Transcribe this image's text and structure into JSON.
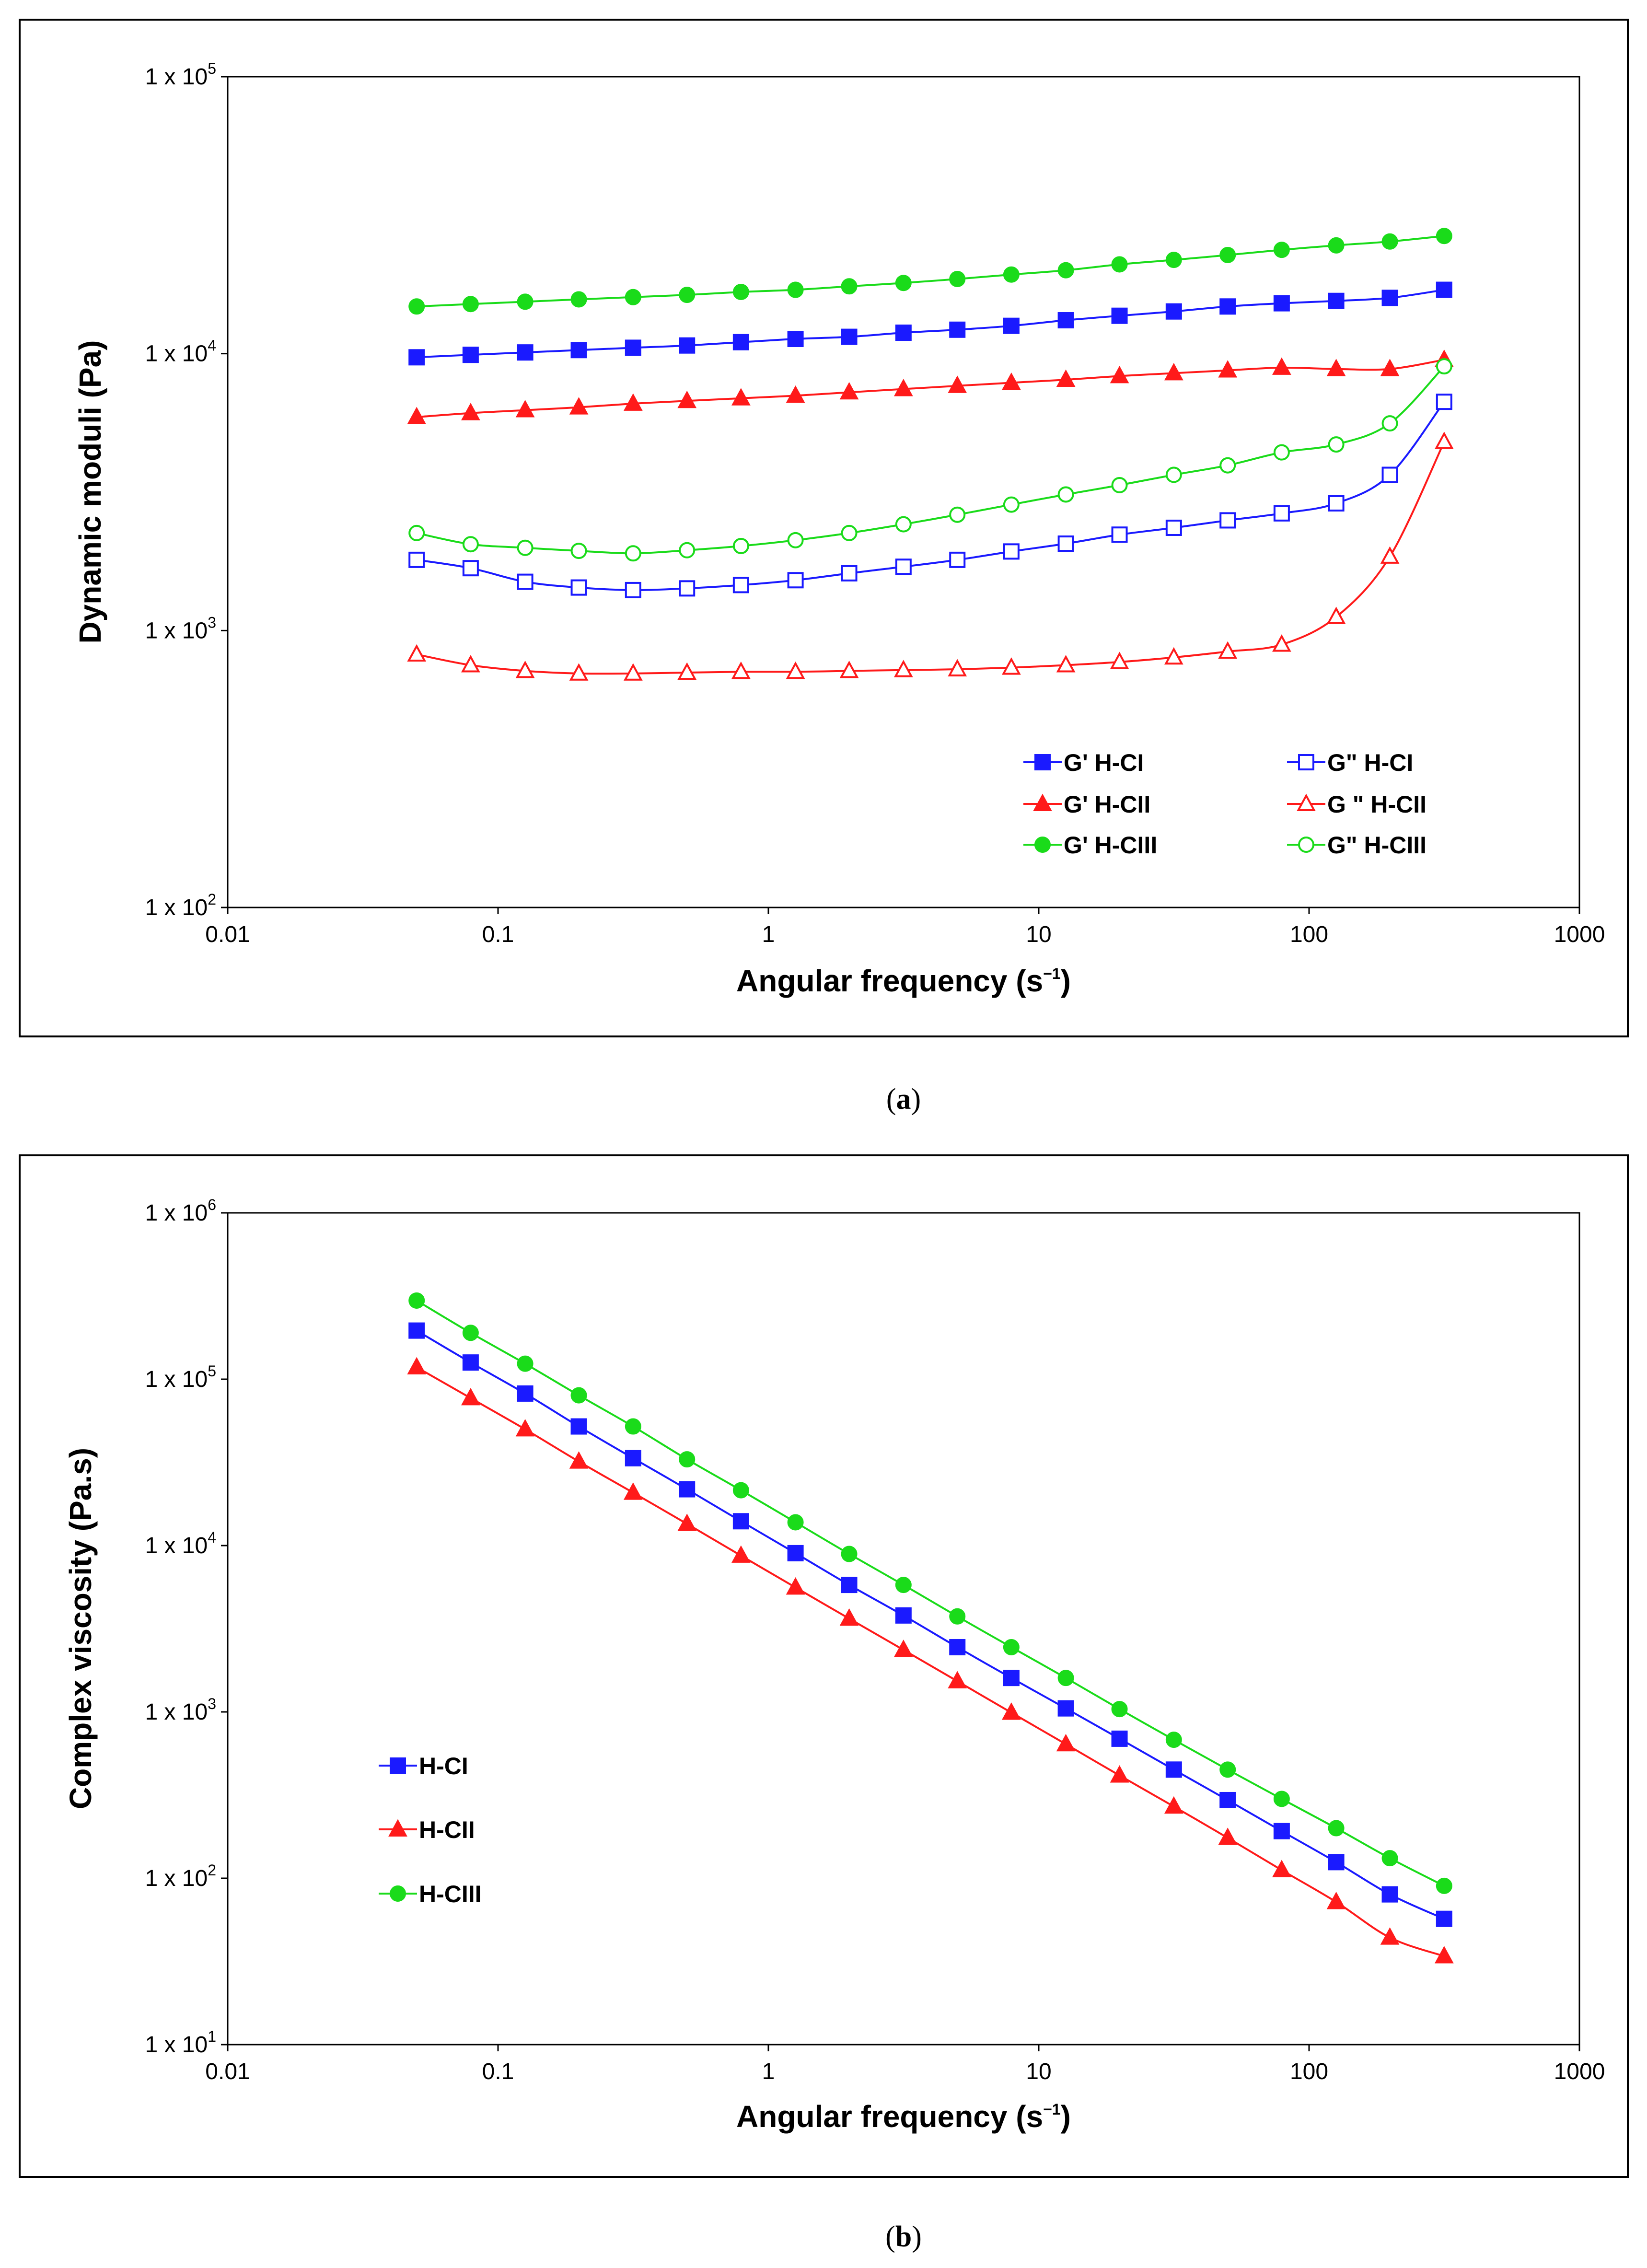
{
  "chart_data": [
    {
      "id": "a",
      "type": "line",
      "caption": "a",
      "xlabel": "Angular frequency (s",
      "xlabel_sup": "−1",
      "xlabel_tail": ")",
      "ylabel": "Dynamic moduli (Pa)",
      "xscale": "log",
      "yscale": "log",
      "xlim": [
        0.01,
        1000
      ],
      "ylim": [
        100,
        100000
      ],
      "x_ticks": [
        "0.01",
        "0.1",
        "1",
        "10",
        "100",
        "1000"
      ],
      "y_ticks": [
        {
          "base": "1 x 10",
          "exp": "2"
        },
        {
          "base": "1 x 10",
          "exp": "3"
        },
        {
          "base": "1 x 10",
          "exp": "4"
        },
        {
          "base": "1 x 10",
          "exp": "5"
        }
      ],
      "grid": false,
      "legend_position": "bottom-right",
      "x": [
        0.05,
        0.0792,
        0.126,
        0.199,
        0.316,
        0.5,
        0.792,
        1.26,
        1.99,
        3.16,
        5,
        7.92,
        12.6,
        19.9,
        31.6,
        50,
        79.2,
        126,
        199,
        316
      ],
      "series": [
        {
          "name": "G' H-CI",
          "color": "#1a1aff",
          "marker": "square",
          "filled": true,
          "values": [
            9700,
            9900,
            10100,
            10300,
            10500,
            10700,
            11000,
            11300,
            11500,
            11900,
            12200,
            12600,
            13200,
            13700,
            14200,
            14800,
            15200,
            15500,
            15900,
            17000
          ]
        },
        {
          "name": "G\" H-CI",
          "color": "#1a1aff",
          "marker": "square",
          "filled": false,
          "values": [
            1800,
            1680,
            1500,
            1430,
            1400,
            1420,
            1460,
            1520,
            1610,
            1700,
            1800,
            1930,
            2060,
            2220,
            2350,
            2500,
            2650,
            2880,
            3650,
            6700
          ]
        },
        {
          "name": "G' H-CII",
          "color": "#ff1a1a",
          "marker": "triangle",
          "filled": true,
          "values": [
            5900,
            6100,
            6250,
            6400,
            6600,
            6750,
            6900,
            7050,
            7250,
            7450,
            7650,
            7850,
            8050,
            8300,
            8500,
            8700,
            8900,
            8800,
            8800,
            9500
          ]
        },
        {
          "name": "G \" H-CII",
          "color": "#ff1a1a",
          "marker": "triangle",
          "filled": false,
          "values": [
            820,
            750,
            715,
            700,
            700,
            705,
            710,
            710,
            715,
            720,
            725,
            735,
            750,
            770,
            800,
            840,
            890,
            1120,
            1850,
            4800
          ]
        },
        {
          "name": "G' H-CIII",
          "color": "#1adb1a",
          "marker": "circle",
          "filled": true,
          "values": [
            14800,
            15100,
            15400,
            15700,
            16000,
            16300,
            16700,
            17000,
            17500,
            18000,
            18600,
            19300,
            20000,
            21000,
            21800,
            22700,
            23700,
            24600,
            25400,
            26600
          ]
        },
        {
          "name": "G\" H-CIII",
          "color": "#1adb1a",
          "marker": "circle",
          "filled": false,
          "values": [
            2250,
            2050,
            1990,
            1940,
            1900,
            1950,
            2020,
            2120,
            2250,
            2420,
            2620,
            2850,
            3100,
            3350,
            3650,
            3950,
            4400,
            4700,
            5600,
            9000
          ]
        }
      ]
    },
    {
      "id": "b",
      "type": "line",
      "caption": "b",
      "xlabel": "Angular frequency (s",
      "xlabel_sup": "−1",
      "xlabel_tail": ")",
      "ylabel": "Complex viscosity (Pa.s)",
      "xscale": "log",
      "yscale": "log",
      "xlim": [
        0.01,
        1000
      ],
      "ylim": [
        10,
        1000000
      ],
      "x_ticks": [
        "0.01",
        "0.1",
        "1",
        "10",
        "100",
        "1000"
      ],
      "y_ticks": [
        {
          "base": "1 x 10",
          "exp": "1"
        },
        {
          "base": "1 x 10",
          "exp": "2"
        },
        {
          "base": "1 x 10",
          "exp": "3"
        },
        {
          "base": "1 x 10",
          "exp": "4"
        },
        {
          "base": "1 x 10",
          "exp": "5"
        },
        {
          "base": "1 x 10",
          "exp": "6"
        }
      ],
      "grid": false,
      "legend_position": "bottom-left",
      "x": [
        0.05,
        0.0792,
        0.126,
        0.199,
        0.316,
        0.5,
        0.792,
        1.26,
        1.99,
        3.16,
        5,
        7.92,
        12.6,
        19.9,
        31.6,
        50,
        79.2,
        126,
        199,
        316
      ],
      "series": [
        {
          "name": "H-CI",
          "color": "#1a1aff",
          "marker": "square",
          "filled": true,
          "values": [
            196000,
            126000,
            82000,
            52000,
            33500,
            21800,
            14000,
            9000,
            5800,
            3800,
            2450,
            1600,
            1050,
            690,
            450,
            295,
            192,
            125,
            80,
            57
          ]
        },
        {
          "name": "H-CII",
          "color": "#ff1a1a",
          "marker": "triangle",
          "filled": true,
          "values": [
            118000,
            77000,
            50000,
            32000,
            20800,
            13500,
            8700,
            5600,
            3640,
            2360,
            1530,
            990,
            640,
            415,
            270,
            175,
            112,
            72,
            44,
            34
          ]
        },
        {
          "name": "H-CIII",
          "color": "#1adb1a",
          "marker": "circle",
          "filled": true,
          "values": [
            297000,
            190000,
            124000,
            80000,
            52000,
            33000,
            21500,
            13800,
            8900,
            5800,
            3750,
            2450,
            1600,
            1040,
            680,
            450,
            300,
            200,
            132,
            90
          ]
        }
      ]
    }
  ]
}
